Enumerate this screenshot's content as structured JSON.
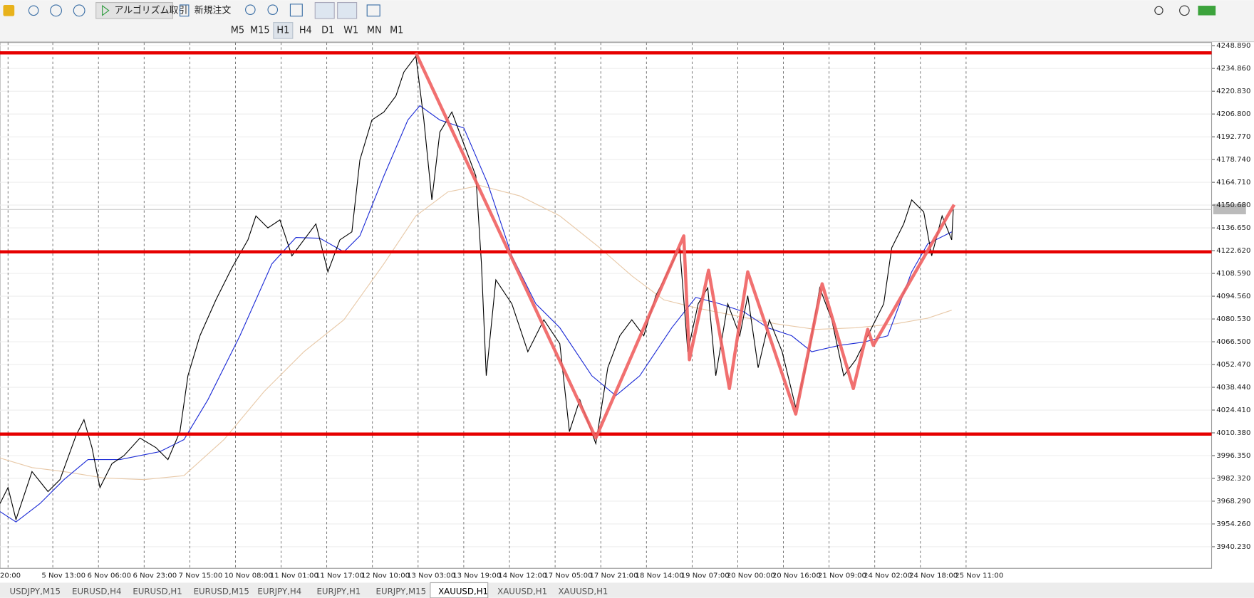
{
  "toolbar": {
    "algo_trading": "アルゴリズム取引",
    "new_order": "新規注文"
  },
  "timeframes": [
    "M5",
    "M15",
    "H1",
    "H4",
    "D1",
    "W1",
    "MN",
    "M1"
  ],
  "active_timeframe": 2,
  "price_axis": [
    "4248.890",
    "4234.860",
    "4220.830",
    "4206.800",
    "4192.770",
    "4178.740",
    "4164.710",
    "4150.680",
    "4136.650",
    "4122.620",
    "4108.590",
    "4094.560",
    "4080.530",
    "4066.500",
    "4052.470",
    "4038.440",
    "4024.410",
    "4010.380",
    "3996.350",
    "3982.320",
    "3968.290",
    "3954.260",
    "3940.230"
  ],
  "time_axis": [
    "20:00",
    "5 Nov 13:00",
    "6 Nov 06:00",
    "6 Nov 23:00",
    "7 Nov 15:00",
    "10 Nov 08:00",
    "11 Nov 01:00",
    "11 Nov 17:00",
    "12 Nov 10:00",
    "13 Nov 03:00",
    "13 Nov 19:00",
    "14 Nov 12:00",
    "17 Nov 05:00",
    "17 Nov 21:00",
    "18 Nov 14:00",
    "19 Nov 07:00",
    "20 Nov 00:00",
    "20 Nov 16:00",
    "21 Nov 09:00",
    "24 Nov 02:00",
    "24 Nov 18:00",
    "25 Nov 11:00"
  ],
  "tabs": [
    "USDJPY,M15",
    "EURUSD,H4",
    "EURUSD,H1",
    "EURUSD,M15",
    "EURJPY,H4",
    "EURJPY,H1",
    "EURJPY,M15",
    "XAUUSD,H1",
    "XAUUSD,H1",
    "XAUUSD,H1"
  ],
  "active_tab": 7
}
